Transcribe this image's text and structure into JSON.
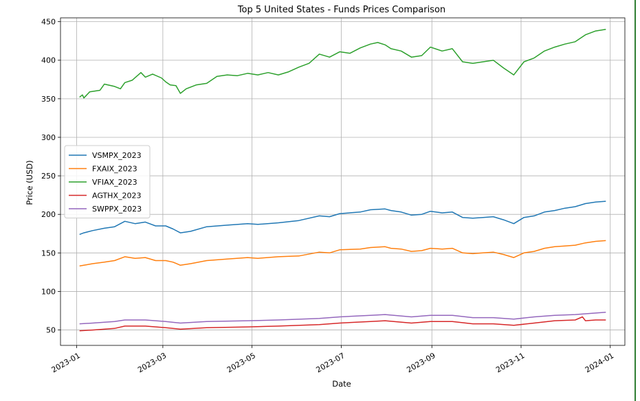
{
  "chart_data": {
    "type": "line",
    "title": "Top 5 United States - Funds Prices Comparison",
    "xlabel": "Date",
    "ylabel": "Price (USD)",
    "xlim": [
      "2022-12-21",
      "2024-01-11"
    ],
    "ylim": [
      30,
      455
    ],
    "x_ticks": [
      "2023-01",
      "2023-03",
      "2023-05",
      "2023-07",
      "2023-09",
      "2023-11",
      "2024-01"
    ],
    "y_ticks": [
      50,
      100,
      150,
      200,
      250,
      300,
      350,
      400,
      450
    ],
    "grid": true,
    "legend_position": "center-left",
    "series": [
      {
        "name": "VSMPX_2023",
        "color": "#1f77b4",
        "points": [
          [
            "2023-01-03",
            174
          ],
          [
            "2023-01-06",
            176
          ],
          [
            "2023-01-12",
            179
          ],
          [
            "2023-01-20",
            182
          ],
          [
            "2023-01-27",
            184
          ],
          [
            "2023-02-03",
            191
          ],
          [
            "2023-02-10",
            188
          ],
          [
            "2023-02-17",
            190
          ],
          [
            "2023-02-24",
            185
          ],
          [
            "2023-03-03",
            185
          ],
          [
            "2023-03-08",
            181
          ],
          [
            "2023-03-13",
            176
          ],
          [
            "2023-03-20",
            178
          ],
          [
            "2023-03-31",
            184
          ],
          [
            "2023-04-14",
            186
          ],
          [
            "2023-04-28",
            188
          ],
          [
            "2023-05-05",
            187
          ],
          [
            "2023-05-19",
            189
          ],
          [
            "2023-06-02",
            192
          ],
          [
            "2023-06-16",
            198
          ],
          [
            "2023-06-23",
            197
          ],
          [
            "2023-06-30",
            201
          ],
          [
            "2023-07-14",
            203
          ],
          [
            "2023-07-21",
            206
          ],
          [
            "2023-07-31",
            207
          ],
          [
            "2023-08-04",
            205
          ],
          [
            "2023-08-11",
            203
          ],
          [
            "2023-08-18",
            199
          ],
          [
            "2023-08-25",
            200
          ],
          [
            "2023-08-31",
            204
          ],
          [
            "2023-09-08",
            202
          ],
          [
            "2023-09-15",
            203
          ],
          [
            "2023-09-22",
            196
          ],
          [
            "2023-09-29",
            195
          ],
          [
            "2023-10-06",
            196
          ],
          [
            "2023-10-13",
            197
          ],
          [
            "2023-10-20",
            193
          ],
          [
            "2023-10-27",
            188
          ],
          [
            "2023-11-03",
            196
          ],
          [
            "2023-11-10",
            198
          ],
          [
            "2023-11-17",
            203
          ],
          [
            "2023-11-24",
            205
          ],
          [
            "2023-12-01",
            208
          ],
          [
            "2023-12-08",
            210
          ],
          [
            "2023-12-15",
            214
          ],
          [
            "2023-12-22",
            216
          ],
          [
            "2023-12-29",
            217
          ]
        ]
      },
      {
        "name": "FXAIX_2023",
        "color": "#ff7f0e",
        "points": [
          [
            "2023-01-03",
            133
          ],
          [
            "2023-01-06",
            134
          ],
          [
            "2023-01-12",
            136
          ],
          [
            "2023-01-20",
            138
          ],
          [
            "2023-01-27",
            140
          ],
          [
            "2023-02-03",
            145
          ],
          [
            "2023-02-10",
            143
          ],
          [
            "2023-02-17",
            144
          ],
          [
            "2023-02-24",
            140
          ],
          [
            "2023-03-03",
            140
          ],
          [
            "2023-03-08",
            138
          ],
          [
            "2023-03-13",
            134
          ],
          [
            "2023-03-20",
            136
          ],
          [
            "2023-03-31",
            140
          ],
          [
            "2023-04-14",
            142
          ],
          [
            "2023-04-28",
            144
          ],
          [
            "2023-05-05",
            143
          ],
          [
            "2023-05-19",
            145
          ],
          [
            "2023-06-02",
            146
          ],
          [
            "2023-06-16",
            151
          ],
          [
            "2023-06-23",
            150
          ],
          [
            "2023-06-30",
            154
          ],
          [
            "2023-07-14",
            155
          ],
          [
            "2023-07-21",
            157
          ],
          [
            "2023-07-31",
            158
          ],
          [
            "2023-08-04",
            156
          ],
          [
            "2023-08-11",
            155
          ],
          [
            "2023-08-18",
            152
          ],
          [
            "2023-08-25",
            153
          ],
          [
            "2023-08-31",
            156
          ],
          [
            "2023-09-08",
            155
          ],
          [
            "2023-09-15",
            156
          ],
          [
            "2023-09-22",
            150
          ],
          [
            "2023-09-29",
            149
          ],
          [
            "2023-10-06",
            150
          ],
          [
            "2023-10-13",
            151
          ],
          [
            "2023-10-20",
            148
          ],
          [
            "2023-10-27",
            144
          ],
          [
            "2023-11-03",
            150
          ],
          [
            "2023-11-10",
            152
          ],
          [
            "2023-11-17",
            156
          ],
          [
            "2023-11-24",
            158
          ],
          [
            "2023-12-01",
            159
          ],
          [
            "2023-12-08",
            160
          ],
          [
            "2023-12-15",
            163
          ],
          [
            "2023-12-22",
            165
          ],
          [
            "2023-12-29",
            166
          ]
        ]
      },
      {
        "name": "VFIAX_2023",
        "color": "#2ca02c",
        "points": [
          [
            "2023-01-03",
            352
          ],
          [
            "2023-01-05",
            355
          ],
          [
            "2023-01-06",
            351
          ],
          [
            "2023-01-10",
            359
          ],
          [
            "2023-01-17",
            361
          ],
          [
            "2023-01-20",
            369
          ],
          [
            "2023-01-27",
            366
          ],
          [
            "2023-01-31",
            363
          ],
          [
            "2023-02-03",
            371
          ],
          [
            "2023-02-08",
            374
          ],
          [
            "2023-02-14",
            384
          ],
          [
            "2023-02-17",
            378
          ],
          [
            "2023-02-22",
            382
          ],
          [
            "2023-02-28",
            377
          ],
          [
            "2023-03-03",
            372
          ],
          [
            "2023-03-06",
            368
          ],
          [
            "2023-03-10",
            367
          ],
          [
            "2023-03-13",
            357
          ],
          [
            "2023-03-17",
            363
          ],
          [
            "2023-03-24",
            368
          ],
          [
            "2023-03-31",
            370
          ],
          [
            "2023-04-07",
            379
          ],
          [
            "2023-04-14",
            381
          ],
          [
            "2023-04-21",
            380
          ],
          [
            "2023-04-28",
            383
          ],
          [
            "2023-05-05",
            381
          ],
          [
            "2023-05-12",
            384
          ],
          [
            "2023-05-19",
            381
          ],
          [
            "2023-05-26",
            385
          ],
          [
            "2023-06-02",
            391
          ],
          [
            "2023-06-09",
            396
          ],
          [
            "2023-06-16",
            408
          ],
          [
            "2023-06-23",
            404
          ],
          [
            "2023-06-30",
            411
          ],
          [
            "2023-07-07",
            409
          ],
          [
            "2023-07-14",
            416
          ],
          [
            "2023-07-21",
            421
          ],
          [
            "2023-07-26",
            423
          ],
          [
            "2023-07-31",
            420
          ],
          [
            "2023-08-04",
            415
          ],
          [
            "2023-08-11",
            412
          ],
          [
            "2023-08-18",
            404
          ],
          [
            "2023-08-25",
            406
          ],
          [
            "2023-08-31",
            417
          ],
          [
            "2023-09-08",
            412
          ],
          [
            "2023-09-15",
            415
          ],
          [
            "2023-09-22",
            398
          ],
          [
            "2023-09-29",
            396
          ],
          [
            "2023-10-06",
            398
          ],
          [
            "2023-10-13",
            400
          ],
          [
            "2023-10-20",
            390
          ],
          [
            "2023-10-27",
            381
          ],
          [
            "2023-11-03",
            398
          ],
          [
            "2023-11-10",
            403
          ],
          [
            "2023-11-17",
            412
          ],
          [
            "2023-11-24",
            417
          ],
          [
            "2023-12-01",
            421
          ],
          [
            "2023-12-08",
            424
          ],
          [
            "2023-12-15",
            433
          ],
          [
            "2023-12-22",
            438
          ],
          [
            "2023-12-29",
            440
          ]
        ]
      },
      {
        "name": "AGTHX_2023",
        "color": "#d62728",
        "points": [
          [
            "2023-01-03",
            49
          ],
          [
            "2023-01-12",
            50
          ],
          [
            "2023-01-27",
            52
          ],
          [
            "2023-02-03",
            55
          ],
          [
            "2023-02-17",
            55
          ],
          [
            "2023-03-03",
            53
          ],
          [
            "2023-03-13",
            51
          ],
          [
            "2023-03-31",
            53
          ],
          [
            "2023-04-28",
            54
          ],
          [
            "2023-05-19",
            55
          ],
          [
            "2023-06-16",
            57
          ],
          [
            "2023-06-30",
            59
          ],
          [
            "2023-07-21",
            61
          ],
          [
            "2023-07-31",
            62
          ],
          [
            "2023-08-18",
            59
          ],
          [
            "2023-08-31",
            61
          ],
          [
            "2023-09-15",
            61
          ],
          [
            "2023-09-29",
            58
          ],
          [
            "2023-10-13",
            58
          ],
          [
            "2023-10-27",
            56
          ],
          [
            "2023-11-10",
            59
          ],
          [
            "2023-11-24",
            62
          ],
          [
            "2023-12-08",
            63
          ],
          [
            "2023-12-13",
            67
          ],
          [
            "2023-12-15",
            62
          ],
          [
            "2023-12-22",
            63
          ],
          [
            "2023-12-29",
            63
          ]
        ]
      },
      {
        "name": "SWPPX_2023",
        "color": "#9467bd",
        "points": [
          [
            "2023-01-03",
            58
          ],
          [
            "2023-01-12",
            59
          ],
          [
            "2023-01-27",
            61
          ],
          [
            "2023-02-03",
            63
          ],
          [
            "2023-02-17",
            63
          ],
          [
            "2023-03-03",
            61
          ],
          [
            "2023-03-13",
            59
          ],
          [
            "2023-03-31",
            61
          ],
          [
            "2023-04-28",
            62
          ],
          [
            "2023-05-19",
            63
          ],
          [
            "2023-06-16",
            65
          ],
          [
            "2023-06-30",
            67
          ],
          [
            "2023-07-21",
            69
          ],
          [
            "2023-07-31",
            70
          ],
          [
            "2023-08-18",
            67
          ],
          [
            "2023-08-31",
            69
          ],
          [
            "2023-09-15",
            69
          ],
          [
            "2023-09-29",
            66
          ],
          [
            "2023-10-13",
            66
          ],
          [
            "2023-10-27",
            64
          ],
          [
            "2023-11-10",
            67
          ],
          [
            "2023-11-24",
            69
          ],
          [
            "2023-12-08",
            70
          ],
          [
            "2023-12-15",
            71
          ],
          [
            "2023-12-22",
            72
          ],
          [
            "2023-12-29",
            73
          ]
        ]
      }
    ]
  }
}
